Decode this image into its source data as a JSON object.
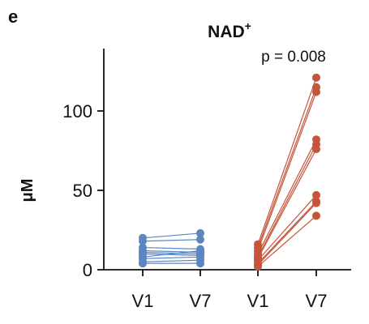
{
  "panel_label": "e",
  "chart_data": {
    "type": "scatter",
    "subtype": "paired-lines",
    "title": "NAD",
    "title_superscript": "+",
    "ylabel": "μM",
    "xlabel": "",
    "ylim": [
      0,
      125
    ],
    "yticks": [
      0,
      50,
      100
    ],
    "categories": [
      "V1",
      "V7",
      "V1",
      "V7"
    ],
    "annotation": "p = 0.008",
    "grid": false,
    "series": [
      {
        "color": "#5b86bf",
        "x_categories": [
          0,
          1
        ],
        "pairs": [
          [
            20,
            23
          ],
          [
            18,
            19
          ],
          [
            14,
            13
          ],
          [
            12,
            11
          ],
          [
            11,
            10
          ],
          [
            10,
            9
          ],
          [
            8,
            12
          ],
          [
            7,
            8
          ],
          [
            5,
            6
          ],
          [
            4,
            4
          ]
        ]
      },
      {
        "color": "#c4553b",
        "x_categories": [
          2,
          3
        ],
        "pairs": [
          [
            16,
            121
          ],
          [
            14,
            115
          ],
          [
            12,
            112
          ],
          [
            10,
            82
          ],
          [
            8,
            79
          ],
          [
            7,
            76
          ],
          [
            6,
            47
          ],
          [
            4,
            43
          ],
          [
            3,
            42
          ],
          [
            2,
            34
          ]
        ]
      }
    ]
  }
}
